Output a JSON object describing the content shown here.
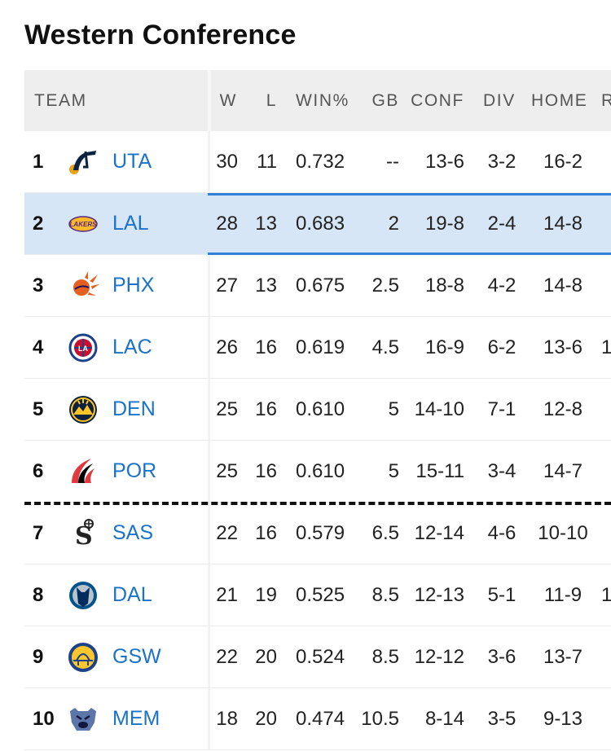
{
  "title": "Western Conference",
  "columns": {
    "team": "TEAM",
    "w": "W",
    "l": "L",
    "pct": "WIN%",
    "gb": "GB",
    "conf": "CONF",
    "div": "DIV",
    "home": "HOME",
    "road": "R"
  },
  "rows": [
    {
      "rank": "1",
      "abbr": "UTA",
      "logo": "jazz-logo-icon",
      "w": "30",
      "l": "11",
      "pct": "0.732",
      "gb": "--",
      "conf": "13-6",
      "div": "3-2",
      "home": "16-2",
      "road": ""
    },
    {
      "rank": "2",
      "abbr": "LAL",
      "logo": "lakers-logo-icon",
      "w": "28",
      "l": "13",
      "pct": "0.683",
      "gb": "2",
      "conf": "19-8",
      "div": "2-4",
      "home": "14-8",
      "road": "",
      "highlighted": true
    },
    {
      "rank": "3",
      "abbr": "PHX",
      "logo": "suns-logo-icon",
      "w": "27",
      "l": "13",
      "pct": "0.675",
      "gb": "2.5",
      "conf": "18-8",
      "div": "4-2",
      "home": "14-8",
      "road": ""
    },
    {
      "rank": "4",
      "abbr": "LAC",
      "logo": "clippers-logo-icon",
      "w": "26",
      "l": "16",
      "pct": "0.619",
      "gb": "4.5",
      "conf": "16-9",
      "div": "6-2",
      "home": "13-6",
      "road": "1"
    },
    {
      "rank": "5",
      "abbr": "DEN",
      "logo": "nuggets-logo-icon",
      "w": "25",
      "l": "16",
      "pct": "0.610",
      "gb": "5",
      "conf": "14-10",
      "div": "7-1",
      "home": "12-8",
      "road": ""
    },
    {
      "rank": "6",
      "abbr": "POR",
      "logo": "blazers-logo-icon",
      "w": "25",
      "l": "16",
      "pct": "0.610",
      "gb": "5",
      "conf": "15-11",
      "div": "3-4",
      "home": "14-7",
      "road": ""
    },
    {
      "rank": "7",
      "abbr": "SAS",
      "logo": "spurs-logo-icon",
      "w": "22",
      "l": "16",
      "pct": "0.579",
      "gb": "6.5",
      "conf": "12-14",
      "div": "4-6",
      "home": "10-10",
      "road": ""
    },
    {
      "rank": "8",
      "abbr": "DAL",
      "logo": "mavericks-logo-icon",
      "w": "21",
      "l": "19",
      "pct": "0.525",
      "gb": "8.5",
      "conf": "12-13",
      "div": "5-1",
      "home": "11-9",
      "road": "1"
    },
    {
      "rank": "9",
      "abbr": "GSW",
      "logo": "warriors-logo-icon",
      "w": "22",
      "l": "20",
      "pct": "0.524",
      "gb": "8.5",
      "conf": "12-12",
      "div": "3-6",
      "home": "13-7",
      "road": ""
    },
    {
      "rank": "10",
      "abbr": "MEM",
      "logo": "grizzlies-logo-icon",
      "w": "18",
      "l": "20",
      "pct": "0.474",
      "gb": "10.5",
      "conf": "8-14",
      "div": "3-5",
      "home": "9-13",
      "road": ""
    }
  ],
  "colors": {
    "link": "#1a73c9",
    "highlight_bg": "#d6e6f7",
    "highlight_border": "#2f80d8",
    "header_bg": "#eeeeee"
  }
}
